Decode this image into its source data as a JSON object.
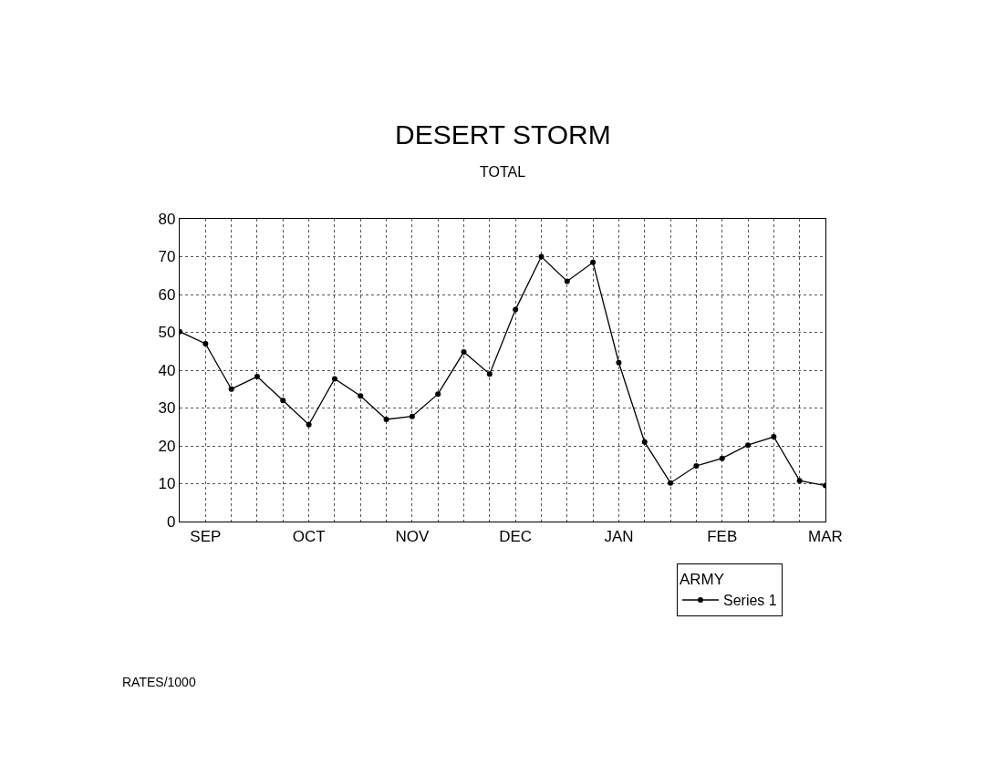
{
  "chart_data": {
    "type": "line",
    "title": "DESERT STORM",
    "subtitle": "TOTAL",
    "legend_title": "ARMY",
    "categories": [
      null,
      "SEP",
      null,
      null,
      null,
      "OCT",
      null,
      null,
      null,
      "NOV",
      null,
      null,
      null,
      "DEC",
      null,
      null,
      null,
      "JAN",
      null,
      null,
      null,
      "FEB",
      null,
      null,
      null,
      "MAR"
    ],
    "series": [
      {
        "name": "Series 1",
        "color": "#000000",
        "values": [
          50.2,
          47,
          35,
          38.3,
          32,
          25.6,
          37.7,
          33.2,
          27,
          27.8,
          33.7,
          44.8,
          39,
          56,
          70,
          63.5,
          68.5,
          42,
          21,
          10.2,
          14.7,
          16.7,
          20.2,
          22.4,
          10.8,
          9.5
        ]
      }
    ],
    "ylim": [
      0,
      80
    ],
    "yticks": [
      0,
      10,
      20,
      30,
      40,
      50,
      60,
      70,
      80
    ],
    "grid": true,
    "legend": "bottom right",
    "marker": "circle",
    "line_style": "solid",
    "annotations": [
      "RATES/1000"
    ]
  }
}
